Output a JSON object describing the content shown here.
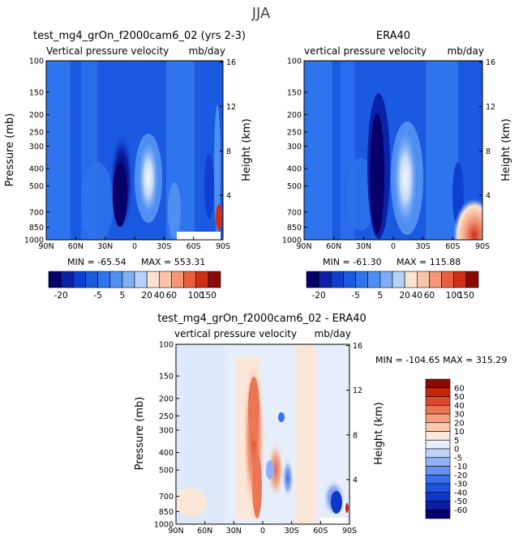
{
  "main_title": "JJA",
  "colors": {
    "diverging_13": [
      "#08006a",
      "#0a22a8",
      "#0f3fd0",
      "#1a5ae0",
      "#2e74ec",
      "#4f8ff2",
      "#7eaef6",
      "#b7d2f9",
      "#fbe3d0",
      "#f9c4a7",
      "#f29777",
      "#e8603f",
      "#d22f18",
      "#8b0a06"
    ],
    "diff_colors": [
      "#08006a",
      "#0b1da0",
      "#0f36c8",
      "#1d55e0",
      "#3a70ea",
      "#6a92f0",
      "#93b1f4",
      "#bfd3f8",
      "#e6eefb",
      "#fbe7d8",
      "#f8c8ad",
      "#f3a07f",
      "#ea7656",
      "#de4a2d",
      "#c8250f",
      "#8b0a06"
    ]
  },
  "chart_data": [
    {
      "type": "heatmap",
      "panel": "model",
      "title": "test_mg4_grOn_f2000cam6_02 (yrs 2-3)",
      "subtitle_left": "Vertical pressure velocity",
      "subtitle_right": "mb/day",
      "ylabel": "Pressure (mb)",
      "y2label": "Height (km)",
      "x_ticks": [
        "90N",
        "60N",
        "30N",
        "0",
        "30S",
        "60S",
        "90S"
      ],
      "y_ticks": [
        "100",
        "150",
        "200",
        "250",
        "300",
        "400",
        "500",
        "700",
        "850",
        "1000"
      ],
      "y2_ticks": [
        "16",
        "12",
        "8",
        "4"
      ],
      "min_label": "MIN = -65.54",
      "max_label": "MAX = 553.31",
      "min": -65.54,
      "max": 553.31,
      "xlim": [
        90,
        -90
      ],
      "ylim": [
        1000,
        100
      ]
    },
    {
      "type": "heatmap",
      "panel": "obs",
      "title": "ERA40",
      "subtitle_left": "vertical pressure velocity",
      "subtitle_right": "mb/day",
      "ylabel": "Pressure (mb)",
      "y2label": "Height (km)",
      "x_ticks": [
        "90N",
        "60N",
        "30N",
        "0",
        "30S",
        "60S",
        "90S"
      ],
      "y_ticks": [
        "100",
        "150",
        "200",
        "250",
        "300",
        "400",
        "500",
        "700",
        "850",
        "1000"
      ],
      "y2_ticks": [
        "16",
        "12",
        "8",
        "4"
      ],
      "min_label": "MIN = -61.30",
      "max_label": "MAX = 115.88",
      "min": -61.3,
      "max": 115.88,
      "xlim": [
        90,
        -90
      ],
      "ylim": [
        1000,
        100
      ]
    },
    {
      "type": "heatmap",
      "panel": "difference",
      "title": "test_mg4_grOn_f2000cam6_02 - ERA40",
      "subtitle_left": "vertical pressure velocity",
      "subtitle_right": "mb/day",
      "ylabel": "Pressure (mb)",
      "y2label": "Height (km)",
      "x_ticks": [
        "90N",
        "60N",
        "30N",
        "0",
        "30S",
        "60S",
        "90S"
      ],
      "y_ticks": [
        "100",
        "150",
        "200",
        "250",
        "300",
        "400",
        "500",
        "700",
        "850",
        "1000"
      ],
      "y2_ticks": [
        "16",
        "12",
        "8",
        "4"
      ],
      "minmax_label": "MIN = -104.65   MAX = 315.29",
      "min": -104.65,
      "max": 315.29,
      "xlim": [
        90,
        -90
      ],
      "ylim": [
        1000,
        100
      ]
    }
  ],
  "colorbar_top": {
    "labels": [
      "-20",
      "-5",
      "5",
      "20",
      "40",
      "60",
      "100",
      "150"
    ]
  },
  "colorbar_diff": {
    "labels": [
      "60",
      "50",
      "40",
      "30",
      "20",
      "10",
      "5",
      "0",
      "-5",
      "-10",
      "-20",
      "-30",
      "-40",
      "-50",
      "-60"
    ]
  }
}
